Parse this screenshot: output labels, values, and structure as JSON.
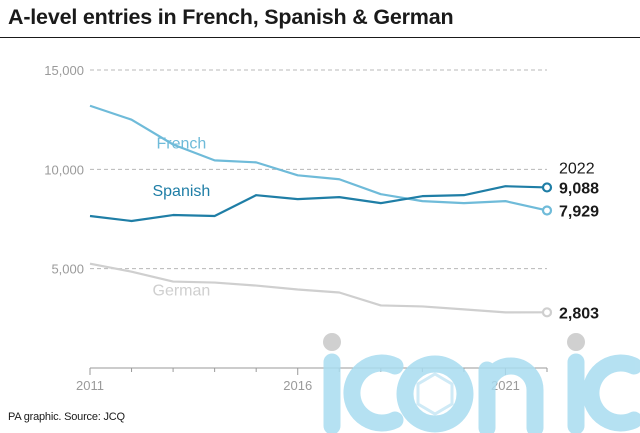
{
  "title": "A-level entries in French, Spanish & German",
  "source": "PA graphic. Source: JCQ",
  "end_year_label": "2022",
  "watermark_text": "iconic",
  "chart_data": {
    "type": "line",
    "title": "A-level entries in French, Spanish & German",
    "x": [
      2011,
      2012,
      2013,
      2014,
      2015,
      2016,
      2017,
      2018,
      2019,
      2020,
      2021,
      2022
    ],
    "x_ticks": [
      "2011",
      "2016",
      "2021"
    ],
    "y_ticks": [
      "5,000",
      "10,000",
      "15,000"
    ],
    "ylim": [
      0,
      15000
    ],
    "grid": true,
    "series": [
      {
        "name": "French",
        "color": "#6fbbd9",
        "values": [
          13200,
          12500,
          11250,
          10450,
          10350,
          9700,
          9500,
          8750,
          8400,
          8300,
          8400,
          7929
        ],
        "end_label": "7,929"
      },
      {
        "name": "Spanish",
        "color": "#1f7ea6",
        "values": [
          7650,
          7400,
          7700,
          7650,
          8700,
          8500,
          8600,
          8300,
          8650,
          8700,
          9150,
          9088
        ],
        "end_label": "9,088"
      },
      {
        "name": "German",
        "color": "#cfcfcf",
        "values": [
          5250,
          4850,
          4350,
          4300,
          4150,
          3950,
          3800,
          3150,
          3100,
          2950,
          2800,
          2803
        ],
        "end_label": "2,803"
      }
    ]
  }
}
